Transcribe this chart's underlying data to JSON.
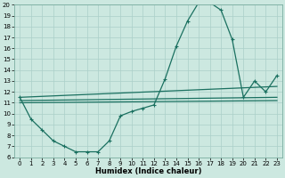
{
  "xlabel": "Humidex (Indice chaleur)",
  "background_color": "#cce8e0",
  "grid_color": "#aacfc8",
  "line_color": "#1a7060",
  "xlim": [
    -0.5,
    23.5
  ],
  "ylim": [
    6,
    20
  ],
  "yticks": [
    6,
    7,
    8,
    9,
    10,
    11,
    12,
    13,
    14,
    15,
    16,
    17,
    18,
    19,
    20
  ],
  "xticks": [
    0,
    1,
    2,
    3,
    4,
    5,
    6,
    7,
    8,
    9,
    10,
    11,
    12,
    13,
    14,
    15,
    16,
    17,
    18,
    19,
    20,
    21,
    22,
    23
  ],
  "series": [
    {
      "x": [
        0,
        1,
        2,
        3,
        4,
        5,
        6,
        7,
        8,
        9,
        10,
        11,
        12,
        13,
        14,
        15,
        16,
        17,
        18,
        19,
        20,
        21,
        22,
        23
      ],
      "y": [
        11.5,
        9.5,
        8.5,
        7.5,
        7.0,
        6.5,
        6.5,
        6.5,
        7.5,
        9.8,
        10.2,
        10.5,
        10.8,
        13.2,
        16.2,
        18.5,
        20.2,
        20.2,
        19.5,
        16.8,
        11.5,
        13.0,
        12.0,
        13.5
      ],
      "marker": "+",
      "lw": 0.9
    },
    {
      "x": [
        0,
        23
      ],
      "y": [
        11.5,
        12.5
      ],
      "marker": null,
      "lw": 0.9
    },
    {
      "x": [
        0,
        23
      ],
      "y": [
        11.2,
        11.5
      ],
      "marker": null,
      "lw": 0.9
    },
    {
      "x": [
        0,
        23
      ],
      "y": [
        11.0,
        11.2
      ],
      "marker": null,
      "lw": 0.9
    }
  ]
}
